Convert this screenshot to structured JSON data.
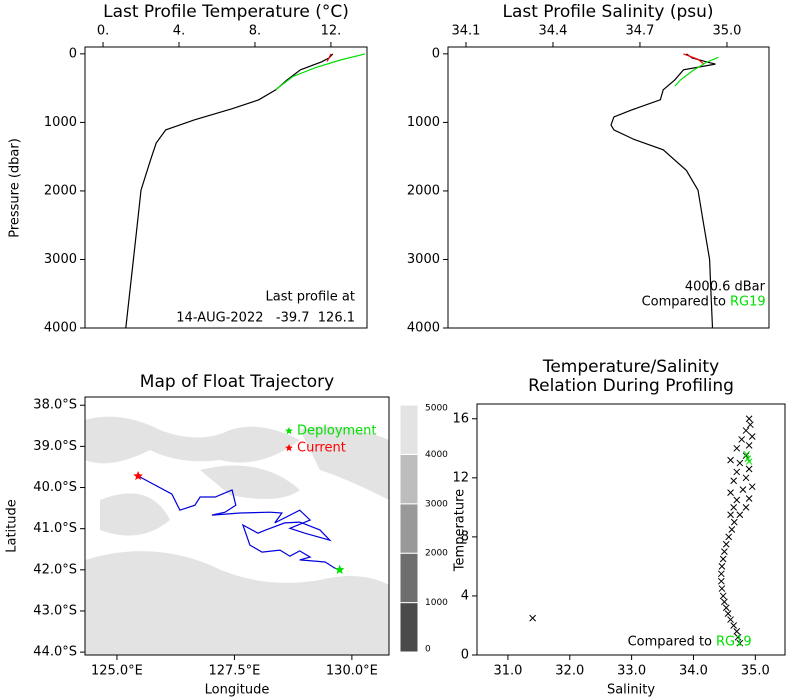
{
  "chart_data": [
    {
      "type": "line",
      "title": "Last Profile Temperature (°C)",
      "y_label": "Pressure (dbar)",
      "x_axis_position": "top",
      "y_inverted": true,
      "xlim": [
        -0.95,
        13.9
      ],
      "xticks": [
        {
          "value": 0,
          "label": "0."
        },
        {
          "value": 4,
          "label": "4."
        },
        {
          "value": 8,
          "label": "8."
        },
        {
          "value": 12,
          "label": "12."
        }
      ],
      "ylim": [
        -100,
        4000
      ],
      "yticks": [
        0,
        1000,
        2000,
        3000,
        4000
      ],
      "series": [
        {
          "color": "#000000",
          "x": [
            12.1,
            11.9,
            11.5,
            10.4,
            9.7,
            9.1,
            8.2,
            6.8,
            4.8,
            3.3,
            2.8,
            2.5,
            2.0,
            1.8,
            1.6,
            1.4,
            1.2
          ],
          "y": [
            0,
            60,
            117,
            233,
            380,
            525,
            670,
            800,
            964,
            1110,
            1300,
            1550,
            1990,
            2500,
            3000,
            3500,
            4000
          ]
        },
        {
          "color": "#ff0000",
          "x": [
            12.0,
            11.9,
            11.8
          ],
          "y": [
            0,
            60,
            110
          ]
        },
        {
          "color": "#00e000",
          "x": [
            13.8,
            12.5,
            11.2,
            10.0,
            9.1
          ],
          "y": [
            0,
            90,
            200,
            330,
            520
          ]
        }
      ],
      "annotations": [
        "Last profile at",
        "14-AUG-2022   -39.7  126.1"
      ]
    },
    {
      "type": "line",
      "title": "Last Profile Salinity (psu)",
      "x_axis_position": "top",
      "y_inverted": true,
      "xlim": [
        34.038,
        35.145
      ],
      "xticks": [
        34.1,
        34.4,
        34.7,
        {
          "value": 35,
          "label": "35.0"
        }
      ],
      "ylim": [
        -100,
        4000
      ],
      "yticks": [
        0,
        1000,
        2000,
        3000,
        4000
      ],
      "series": [
        {
          "color": "#000000",
          "x": [
            34.86,
            34.88,
            34.93,
            34.96,
            34.85,
            34.82,
            34.78,
            34.77,
            34.67,
            34.61,
            34.6,
            34.61,
            34.68,
            34.78,
            34.86,
            34.9,
            34.92,
            34.94,
            34.945,
            34.95
          ],
          "y": [
            0,
            60,
            117,
            150,
            233,
            380,
            525,
            670,
            820,
            920,
            1040,
            1110,
            1250,
            1400,
            1700,
            1990,
            2500,
            3000,
            3500,
            4000
          ]
        },
        {
          "color": "#ff0000",
          "x": [
            34.85,
            34.9,
            34.92
          ],
          "y": [
            0,
            80,
            150
          ]
        },
        {
          "color": "#00e000",
          "x": [
            34.97,
            34.93,
            34.88,
            34.84,
            34.82
          ],
          "y": [
            50,
            120,
            250,
            380,
            470
          ]
        }
      ],
      "annotations": [
        "4000.6 dBar",
        "Compared to",
        "RG19"
      ]
    },
    {
      "type": "map",
      "title": "Map of Float Trajectory",
      "x_label": "Longitude",
      "y_label": "Latitude",
      "xlim": [
        124.32,
        130.79
      ],
      "xticks": [
        {
          "value": 125,
          "label": "125.0°E"
        },
        {
          "value": 127.5,
          "label": "127.5°E"
        },
        {
          "value": 130,
          "label": "130.0°E"
        }
      ],
      "ylim": [
        -44.07,
        -37.8
      ],
      "yticks": [
        {
          "value": -38,
          "label": "38.0°S"
        },
        {
          "value": -39,
          "label": "39.0°S"
        },
        {
          "value": -40,
          "label": "40.0°S"
        },
        {
          "value": -41,
          "label": "41.0°S"
        },
        {
          "value": -42,
          "label": "42.0°S"
        },
        {
          "value": -43,
          "label": "43.0°S"
        },
        {
          "value": -44,
          "label": "44.0°S"
        }
      ],
      "series": [
        {
          "color": "#0000dd",
          "x": [
            125.45,
            126.17,
            126.34,
            126.66,
            126.77,
            127.09,
            127.45,
            127.53,
            127.3,
            127.02,
            127.62,
            128.26,
            128.51,
            128.36,
            128.89,
            129.11,
            128.68,
            129.0,
            129.53,
            129.32,
            128.89,
            128.57,
            128.17,
            128.0,
            127.68,
            127.83,
            128.09,
            128.47,
            128.68,
            128.89,
            129.11,
            128.89,
            129.43,
            129.64,
            129.74
          ],
          "y": [
            -39.72,
            -40.16,
            -40.55,
            -40.43,
            -40.23,
            -40.23,
            -40.06,
            -40.43,
            -40.6,
            -40.67,
            -40.62,
            -40.6,
            -40.62,
            -40.86,
            -40.55,
            -40.79,
            -40.99,
            -41.11,
            -41.28,
            -41.03,
            -40.84,
            -40.86,
            -41.03,
            -41.11,
            -40.91,
            -41.4,
            -41.57,
            -41.52,
            -41.67,
            -41.54,
            -41.69,
            -41.76,
            -41.81,
            -41.96,
            -42.0
          ]
        }
      ],
      "legend": [
        {
          "name": "Deployment",
          "color": "#00e000",
          "x": 129.74,
          "y": -42.0
        },
        {
          "name": "Current",
          "color": "#ff0000",
          "x": 125.45,
          "y": -39.72
        }
      ],
      "colorbar": {
        "ticks": [
          0,
          1000,
          2000,
          3000,
          4000,
          5000
        ],
        "colors": [
          "#4a4a4a",
          "#6e6e6e",
          "#999999",
          "#bdbdbd",
          "#e3e3e3"
        ]
      }
    },
    {
      "type": "scatter",
      "title": [
        "Temperature/Salinity",
        "Relation During Profiling"
      ],
      "x_label": "Salinity",
      "y_label": "Temperature",
      "xlim": [
        30.5,
        35.48
      ],
      "xticks": [
        {
          "value": 31,
          "label": "31.0"
        },
        {
          "value": 32,
          "label": "32.0"
        },
        {
          "value": 33,
          "label": "33.0"
        },
        {
          "value": 34,
          "label": "34.0"
        },
        {
          "value": 35,
          "label": "35.0"
        }
      ],
      "ylim": [
        0,
        17
      ],
      "yticks": [
        0,
        4,
        8,
        12,
        16
      ],
      "series": [
        {
          "color": "#000000",
          "x": [
            34.75,
            34.72,
            34.7,
            34.65,
            34.6,
            34.56,
            34.53,
            34.5,
            34.48,
            34.46,
            34.45,
            34.45,
            34.46,
            34.48,
            34.5,
            34.53,
            34.57,
            34.62,
            34.66,
            34.6,
            34.75,
            34.65,
            34.85,
            34.7,
            34.9,
            34.6,
            34.8,
            34.95,
            34.65,
            34.85,
            34.7,
            34.9,
            34.75,
            34.6,
            34.85,
            34.7,
            34.9,
            34.78,
            34.95,
            34.85,
            34.92,
            34.9,
            31.4
          ],
          "y": [
            0.8,
            1.2,
            1.6,
            2.0,
            2.4,
            2.8,
            3.2,
            3.6,
            4.0,
            4.5,
            5.0,
            5.5,
            6.0,
            6.5,
            7.0,
            7.5,
            8.0,
            8.5,
            9.0,
            9.5,
            9.5,
            10.0,
            10.0,
            10.5,
            10.6,
            11.0,
            11.2,
            11.4,
            11.8,
            12.0,
            12.4,
            12.6,
            13.0,
            13.2,
            13.5,
            14.0,
            14.2,
            14.6,
            14.8,
            15.2,
            15.6,
            16.0,
            2.5
          ]
        },
        {
          "color": "#00e000",
          "x": [
            34.88,
            34.86,
            34.9
          ],
          "y": [
            13.3,
            13.6,
            13.1
          ]
        }
      ],
      "annotations": [
        "Compared to",
        "RG19"
      ]
    }
  ]
}
